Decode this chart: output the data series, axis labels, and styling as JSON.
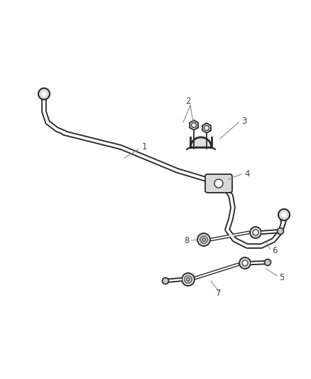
{
  "background_color": "#ffffff",
  "line_color": "#2a2a2a",
  "label_color": "#444444",
  "callout_color": "#888888",
  "figsize": [
    4.38,
    5.33
  ],
  "dpi": 100,
  "bar_lw_outer": 5.5,
  "bar_lw_inner": 3.0,
  "bar_color_outer": "#2a2a2a",
  "bar_color_inner": "#ffffff"
}
